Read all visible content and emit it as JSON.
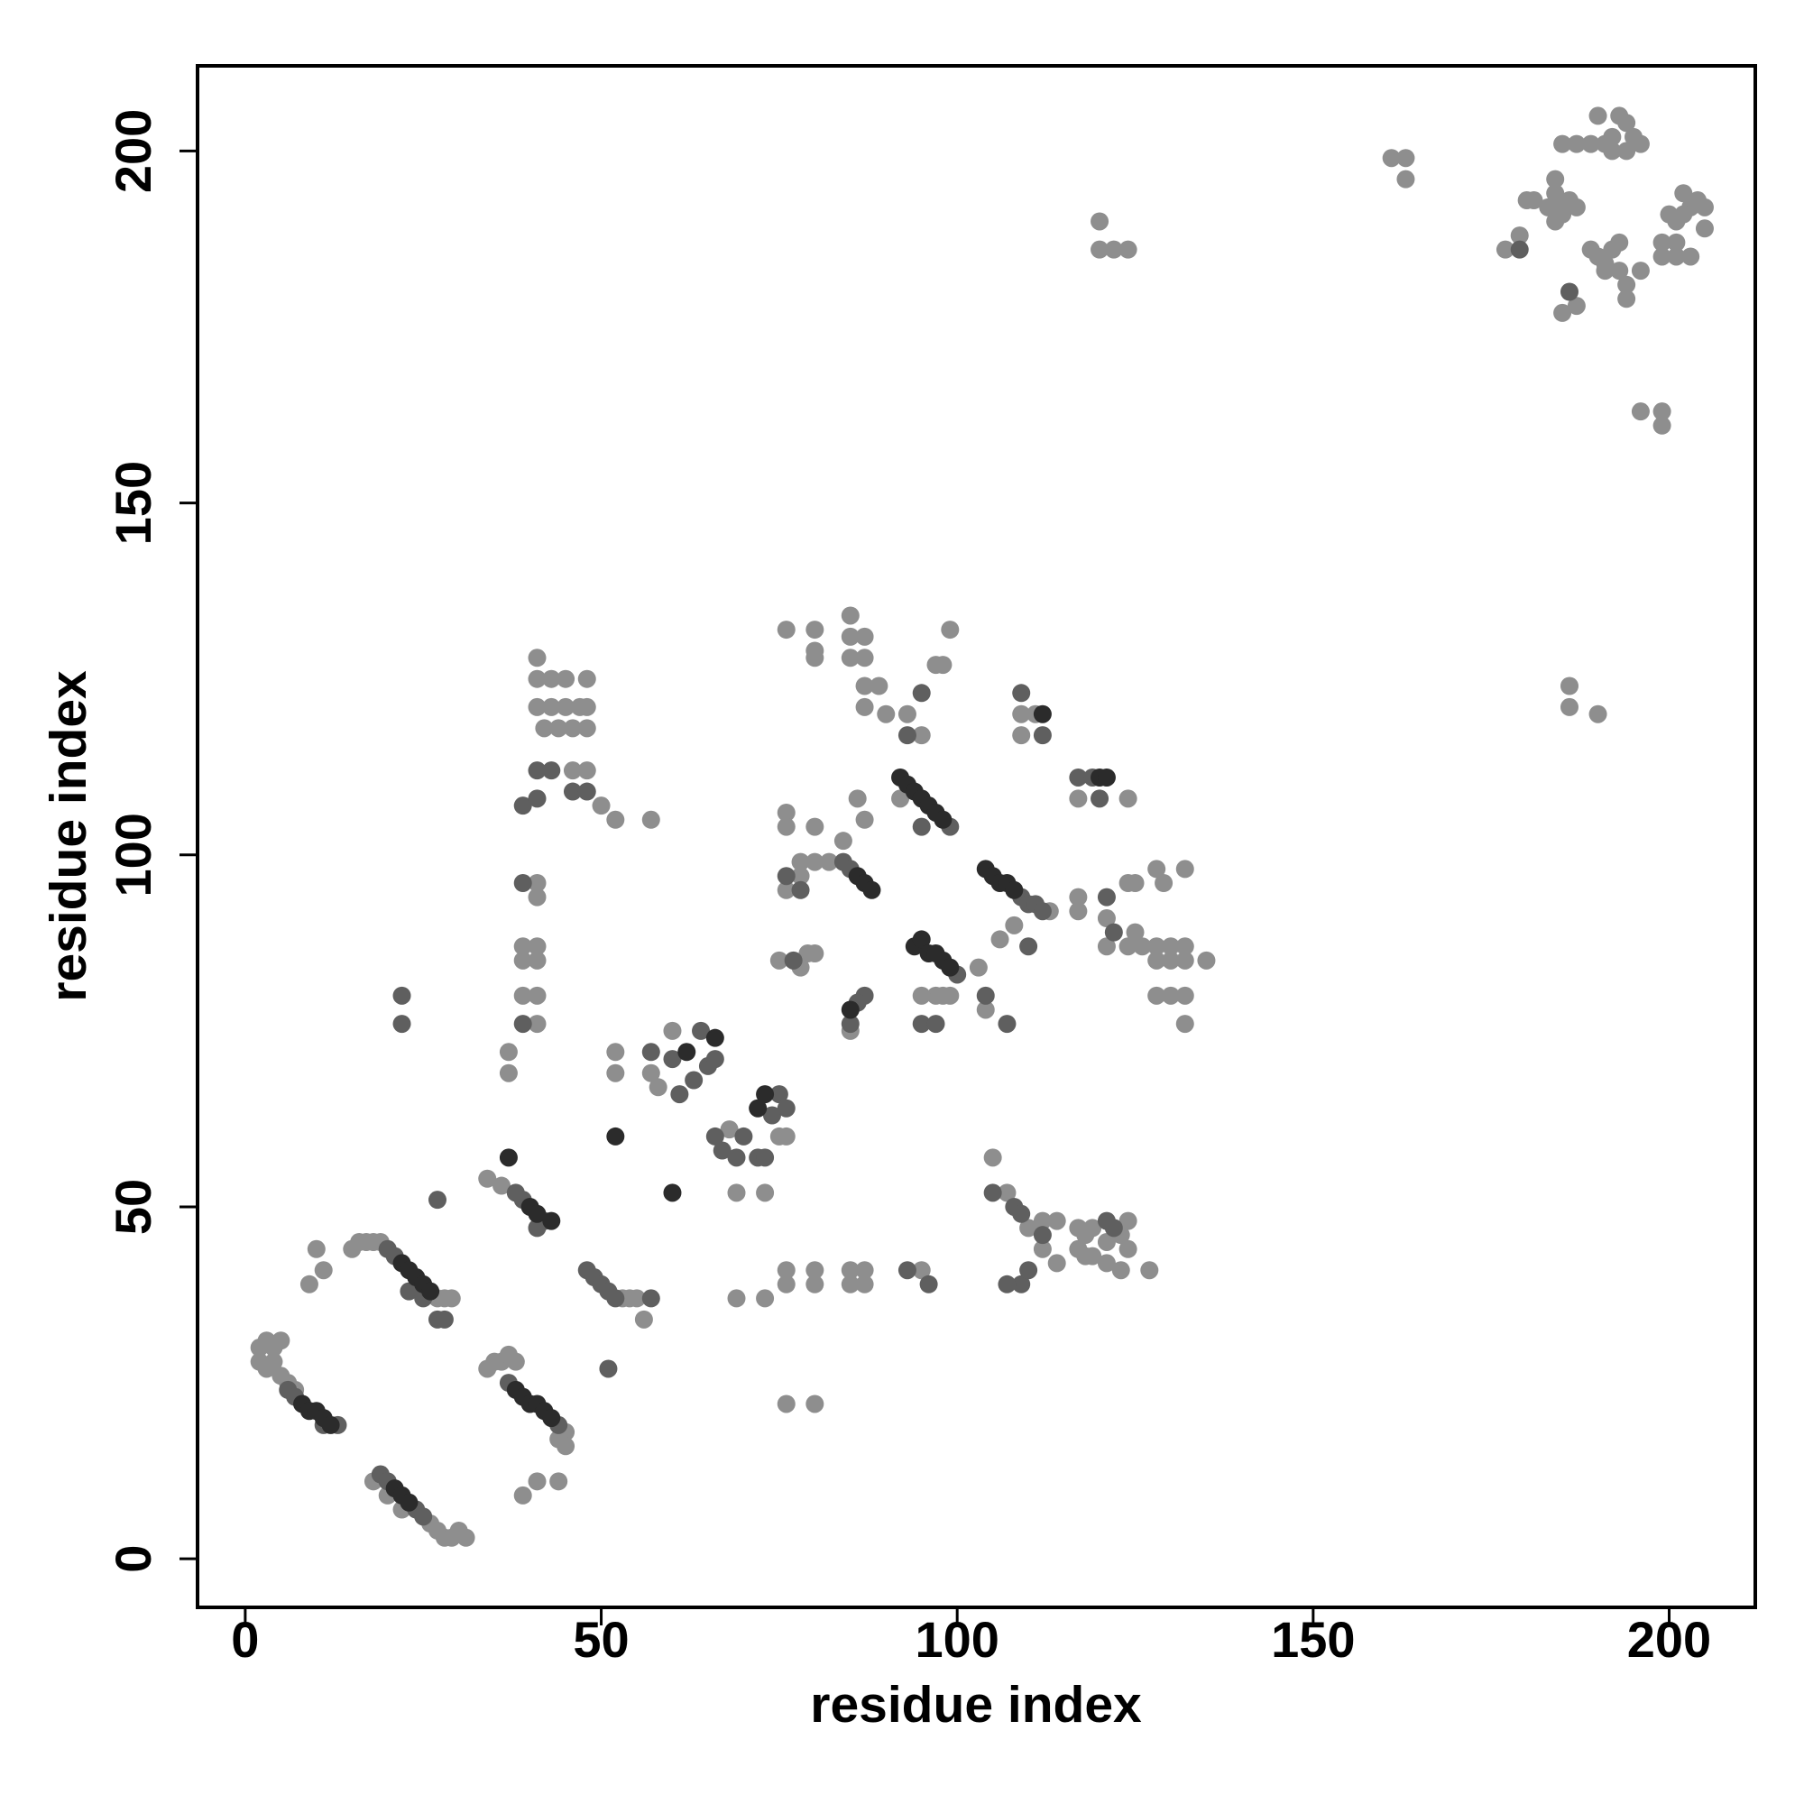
{
  "chart_data": {
    "type": "scatter",
    "xlabel": "residue index",
    "ylabel": "residue index",
    "xlim": [
      -6.7,
      212.1
    ],
    "ylim": [
      -6.9,
      212.1
    ],
    "xticks": [
      0,
      50,
      100,
      150,
      200
    ],
    "yticks": [
      0,
      50,
      100,
      150,
      200
    ],
    "series": [
      {
        "color": "#8e8e8e",
        "x": [
          2,
          3,
          4,
          5,
          2,
          3,
          4,
          5,
          6,
          7,
          18,
          20,
          22,
          26,
          27,
          28,
          29,
          30,
          31,
          15,
          16,
          17,
          18,
          19,
          27,
          28,
          29,
          10,
          11,
          9,
          36,
          37,
          38,
          34,
          35,
          45,
          45,
          44,
          39,
          41,
          44,
          34,
          36,
          53,
          54,
          55,
          56,
          41,
          41,
          39,
          41,
          39,
          41,
          39,
          41,
          41,
          37,
          37,
          41,
          41,
          43,
          45,
          48,
          41,
          43,
          45,
          47,
          48,
          42,
          44,
          46,
          48,
          46,
          48,
          50,
          52,
          57,
          52,
          52,
          57,
          58,
          60,
          68,
          75,
          76,
          69,
          73,
          69,
          73,
          76,
          76,
          80,
          78,
          78,
          80,
          82,
          76,
          86,
          84,
          87,
          76,
          80,
          85,
          85,
          87,
          85,
          87,
          80,
          80,
          87,
          89,
          87,
          90,
          93,
          97,
          98,
          99,
          95,
          92,
          99,
          97,
          95,
          98,
          95,
          103,
          85,
          75,
          79,
          80,
          78,
          113,
          108,
          106,
          109,
          111,
          109,
          117,
          124,
          117,
          117,
          121,
          121,
          124,
          125,
          124,
          125,
          126,
          128,
          129,
          128,
          130,
          132,
          132,
          128,
          130,
          135,
          132,
          128,
          130,
          132,
          132,
          104,
          105,
          107,
          110,
          112,
          114,
          112,
          114,
          117,
          118,
          119,
          117,
          118,
          123,
          124,
          121,
          124,
          121,
          123,
          127,
          119,
          76,
          80,
          76,
          80,
          85,
          87,
          85,
          87,
          76,
          80,
          120,
          120,
          122,
          124,
          161,
          163,
          163,
          186,
          186,
          190,
          177,
          179,
          180,
          181,
          184,
          184,
          183,
          185,
          186,
          187,
          184,
          185,
          185,
          187,
          189,
          191,
          192,
          194,
          190,
          193,
          195,
          194,
          192,
          196,
          189,
          190,
          191,
          192,
          193,
          191,
          193,
          196,
          194,
          194,
          187,
          185,
          201,
          203,
          201,
          203,
          204,
          205,
          205,
          202,
          202,
          200,
          199,
          199,
          201,
          196,
          199,
          199
        ],
        "y": [
          30,
          31,
          30,
          31,
          28,
          27,
          28,
          26,
          25,
          24,
          11,
          9,
          7,
          5,
          4,
          3,
          3,
          4,
          3,
          44,
          45,
          45,
          45,
          45,
          37,
          37,
          37,
          44,
          41,
          39,
          28,
          29,
          28,
          27,
          28,
          18,
          16,
          17,
          9,
          11,
          11,
          54,
          53,
          37,
          37,
          37,
          34,
          96,
          94,
          87,
          87,
          85,
          85,
          80,
          80,
          76,
          72,
          69,
          128,
          125,
          125,
          125,
          125,
          121,
          121,
          121,
          121,
          121,
          118,
          118,
          118,
          118,
          112,
          112,
          107,
          105,
          105,
          72,
          69,
          69,
          67,
          75,
          61,
          60,
          60,
          52,
          52,
          37,
          37,
          106,
          104,
          104,
          99,
          97,
          99,
          99,
          95,
          108,
          102,
          105,
          132,
          132,
          134,
          131,
          131,
          128,
          128,
          129,
          128,
          124,
          124,
          121,
          120,
          120,
          127,
          127,
          132,
          117,
          108,
          80,
          80,
          80,
          80,
          41,
          84,
          75,
          85,
          86,
          86,
          84,
          92,
          90,
          88,
          120,
          120,
          117,
          108,
          108,
          94,
          92,
          91,
          87,
          96,
          96,
          87,
          89,
          87,
          98,
          96,
          87,
          87,
          98,
          87,
          85,
          85,
          85,
          85,
          80,
          80,
          80,
          76,
          78,
          57,
          52,
          47,
          48,
          48,
          44,
          42,
          47,
          46,
          47,
          44,
          43,
          46,
          48,
          45,
          44,
          42,
          41,
          41,
          43,
          41,
          41,
          39,
          39,
          41,
          41,
          39,
          39,
          22,
          22,
          190,
          186,
          186,
          186,
          199,
          199,
          196,
          124,
          121,
          120,
          186,
          188,
          193,
          193,
          196,
          194,
          192,
          192,
          193,
          192,
          190,
          191,
          201,
          201,
          201,
          201,
          202,
          204,
          205,
          205,
          202,
          200,
          200,
          201,
          186,
          185,
          184,
          186,
          187,
          183,
          183,
          183,
          181,
          179,
          178,
          177,
          185,
          185,
          190,
          192,
          193,
          192,
          189,
          194,
          191,
          191,
          187,
          185,
          187,
          163,
          163,
          161
        ]
      },
      {
        "color": "#5f5f5f",
        "x": [
          6,
          7,
          13,
          11,
          19,
          20,
          24,
          25,
          20,
          21,
          23,
          25,
          37,
          44,
          38,
          39,
          42,
          41,
          48,
          49,
          50,
          51,
          52,
          57,
          84,
          85,
          99,
          95,
          100,
          109,
          110,
          111,
          112,
          39,
          39,
          39,
          41,
          57,
          60,
          61,
          63,
          64,
          65,
          66,
          66,
          67,
          69,
          74,
          75,
          76,
          76,
          78,
          87,
          86,
          85,
          95,
          97,
          96,
          104,
          107,
          110,
          109,
          112,
          117,
          119,
          120,
          121,
          122,
          105,
          108,
          109,
          109,
          110,
          107,
          112,
          121,
          122,
          179,
          186,
          95,
          93,
          22,
          22,
          27,
          28,
          51,
          46,
          48,
          41,
          43,
          77,
          93,
          72,
          73,
          70,
          27
        ],
        "y": [
          24,
          23,
          19,
          19,
          12,
          11,
          7,
          6,
          44,
          43,
          38,
          37,
          25,
          19,
          52,
          51,
          48,
          47,
          41,
          40,
          39,
          38,
          37,
          37,
          99,
          98,
          104,
          104,
          83,
          94,
          93,
          93,
          92,
          96,
          76,
          107,
          108,
          72,
          71,
          66,
          68,
          75,
          70,
          71,
          60,
          58,
          57,
          63,
          66,
          64,
          97,
          95,
          80,
          79,
          76,
          76,
          76,
          39,
          80,
          76,
          87,
          123,
          117,
          111,
          111,
          108,
          94,
          89,
          52,
          50,
          49,
          39,
          41,
          39,
          46,
          48,
          47,
          186,
          180,
          123,
          117,
          80,
          76,
          34,
          34,
          27,
          109,
          109,
          112,
          112,
          85,
          41,
          57,
          57,
          60,
          51
        ]
      },
      {
        "color": "#2b2b2b",
        "x": [
          8,
          9,
          10,
          11,
          12,
          22,
          23,
          24,
          25,
          26,
          38,
          39,
          40,
          41,
          42,
          43,
          21,
          22,
          23,
          92,
          93,
          94,
          95,
          96,
          97,
          98,
          94,
          95,
          96,
          97,
          98,
          99,
          104,
          105,
          106,
          107,
          108,
          86,
          87,
          88,
          85,
          37,
          40,
          41,
          60,
          52,
          73,
          72,
          62,
          66,
          120,
          121,
          112,
          43
        ],
        "y": [
          22,
          21,
          21,
          20,
          19,
          42,
          41,
          40,
          39,
          38,
          24,
          23,
          22,
          22,
          21,
          20,
          10,
          9,
          8,
          111,
          110,
          109,
          108,
          107,
          106,
          105,
          87,
          88,
          86,
          86,
          85,
          84,
          98,
          97,
          96,
          96,
          95,
          97,
          96,
          95,
          78,
          57,
          50,
          49,
          52,
          60,
          66,
          64,
          72,
          74,
          111,
          111,
          120,
          48
        ]
      }
    ]
  }
}
